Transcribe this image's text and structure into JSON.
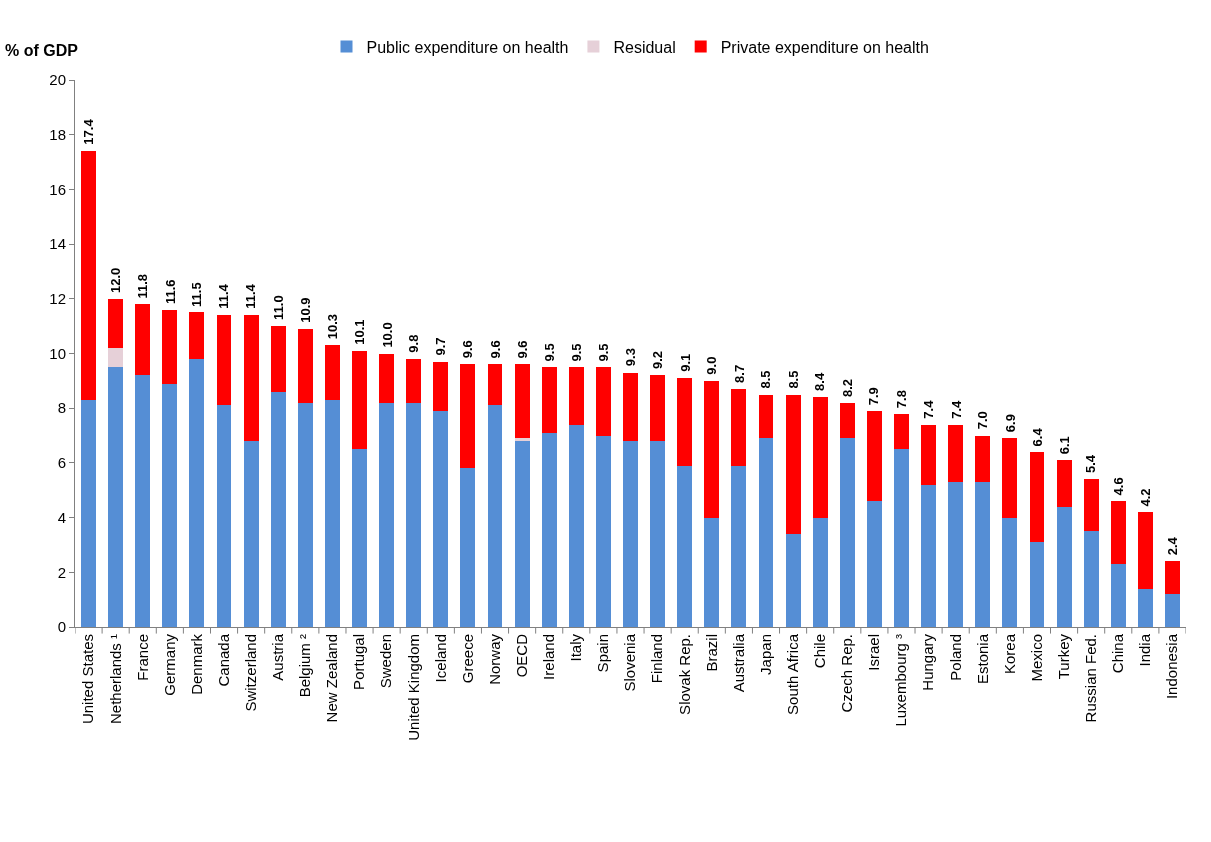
{
  "chart_data": {
    "type": "bar",
    "stacked": true,
    "ylabel": "% of GDP",
    "categories": [
      "United States",
      "Netherlands ¹",
      "France",
      "Germany",
      "Denmark",
      "Canada",
      "Switzerland",
      "Austria",
      "Belgium ²",
      "New Zealand",
      "Portugal",
      "Sweden",
      "United Kingdom",
      "Iceland",
      "Greece",
      "Norway",
      "OECD",
      "Ireland",
      "Italy",
      "Spain",
      "Slovenia",
      "Finland",
      "Slovak Rep.",
      "Brazil",
      "Australia",
      "Japan",
      "South Africa",
      "Chile",
      "Czech Rep.",
      "Israel",
      "Luxembourg ³",
      "Hungary",
      "Poland",
      "Estonia",
      "Korea",
      "Mexico",
      "Turkey",
      "Russian Fed.",
      "China",
      "India",
      "Indonesia"
    ],
    "series": [
      {
        "name": "Public expenditure on health",
        "color": "#558ed5",
        "values": [
          8.3,
          9.5,
          9.2,
          8.9,
          9.8,
          8.1,
          6.8,
          8.6,
          8.2,
          8.3,
          6.5,
          8.2,
          8.2,
          7.9,
          5.8,
          8.1,
          6.8,
          7.1,
          7.4,
          7.0,
          6.8,
          6.8,
          5.9,
          4.0,
          5.9,
          6.9,
          3.4,
          4.0,
          6.9,
          4.6,
          6.5,
          5.2,
          5.3,
          5.3,
          4.0,
          3.1,
          4.4,
          3.5,
          2.3,
          1.4,
          1.2
        ]
      },
      {
        "name": "Residual",
        "color": "#e6d0d8",
        "values": [
          null,
          0.7,
          null,
          null,
          null,
          null,
          null,
          null,
          null,
          null,
          null,
          null,
          null,
          null,
          null,
          null,
          0.1,
          null,
          null,
          null,
          null,
          null,
          null,
          null,
          null,
          null,
          null,
          null,
          null,
          null,
          null,
          null,
          null,
          null,
          null,
          null,
          null,
          null,
          null,
          null,
          null
        ]
      },
      {
        "name": "Private expenditure on health",
        "color": "#ff0000",
        "values": [
          9.1,
          1.8,
          2.6,
          2.7,
          1.7,
          3.3,
          4.6,
          2.4,
          2.7,
          2.0,
          3.6,
          1.8,
          1.6,
          1.8,
          3.8,
          1.5,
          2.7,
          2.4,
          2.1,
          2.5,
          2.5,
          2.4,
          3.2,
          5.0,
          2.8,
          1.6,
          5.1,
          4.4,
          1.3,
          3.3,
          1.3,
          2.2,
          2.1,
          1.7,
          2.9,
          3.3,
          1.7,
          1.9,
          2.3,
          2.8,
          1.2
        ]
      }
    ],
    "totals": [
      "17.4",
      "12.0",
      "11.8",
      "11.6",
      "11.5",
      "11.4",
      "11.4",
      "11.0",
      "10.9",
      "10.3",
      "10.1",
      "10.0",
      "9.8",
      "9.7",
      "9.6",
      "9.6",
      "9.6",
      "9.5",
      "9.5",
      "9.5",
      "9.3",
      "9.2",
      "9.1",
      "9.0",
      "8.7",
      "8.5",
      "8.5",
      "8.4",
      "8.2",
      "7.9",
      "7.8",
      "7.4",
      "7.4",
      "7.0",
      "6.9",
      "6.4",
      "6.1",
      "5.4",
      "4.6",
      "4.2",
      "2.4"
    ],
    "ylim": [
      0,
      20
    ],
    "yticks": [
      0,
      2,
      4,
      6,
      8,
      10,
      12,
      14,
      16,
      18,
      20
    ],
    "legend": "top"
  }
}
